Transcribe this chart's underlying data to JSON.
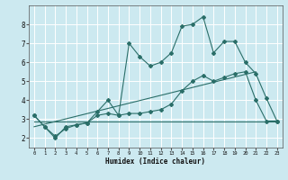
{
  "xlabel": "Humidex (Indice chaleur)",
  "xlim": [
    -0.5,
    23.5
  ],
  "ylim": [
    1.5,
    9.0
  ],
  "xticks": [
    0,
    1,
    2,
    3,
    4,
    5,
    6,
    7,
    8,
    9,
    10,
    11,
    12,
    13,
    14,
    15,
    16,
    17,
    18,
    19,
    20,
    21,
    22,
    23
  ],
  "yticks": [
    2,
    3,
    4,
    5,
    6,
    7,
    8
  ],
  "bg_color": "#cce9f0",
  "line_color": "#2a6e68",
  "grid_color": "#ffffff",
  "series1_x": [
    0,
    1,
    2,
    3,
    4,
    5,
    6,
    7,
    8,
    9,
    10,
    11,
    12,
    13,
    14,
    15,
    16,
    17,
    18,
    19,
    20,
    21,
    22,
    23
  ],
  "series1_y": [
    3.2,
    2.6,
    2.0,
    2.6,
    2.7,
    2.8,
    3.4,
    4.0,
    3.2,
    7.0,
    6.3,
    5.8,
    6.0,
    6.5,
    7.9,
    8.0,
    8.4,
    6.5,
    7.1,
    7.1,
    6.0,
    5.4,
    4.1,
    2.9
  ],
  "series2_x": [
    0,
    1,
    2,
    3,
    4,
    5,
    6,
    7,
    8,
    9,
    10,
    11,
    12,
    13,
    14,
    15,
    16,
    17,
    18,
    19,
    20,
    21,
    22,
    23
  ],
  "series2_y": [
    3.2,
    2.6,
    2.1,
    2.5,
    2.7,
    2.8,
    3.2,
    3.3,
    3.2,
    3.3,
    3.3,
    3.4,
    3.5,
    3.8,
    4.5,
    5.0,
    5.3,
    5.0,
    5.2,
    5.4,
    5.5,
    4.0,
    2.9,
    2.9
  ],
  "series3_x": [
    0,
    23
  ],
  "series3_y": [
    2.9,
    2.9
  ],
  "series4_x": [
    0,
    21
  ],
  "series4_y": [
    2.6,
    5.5
  ]
}
